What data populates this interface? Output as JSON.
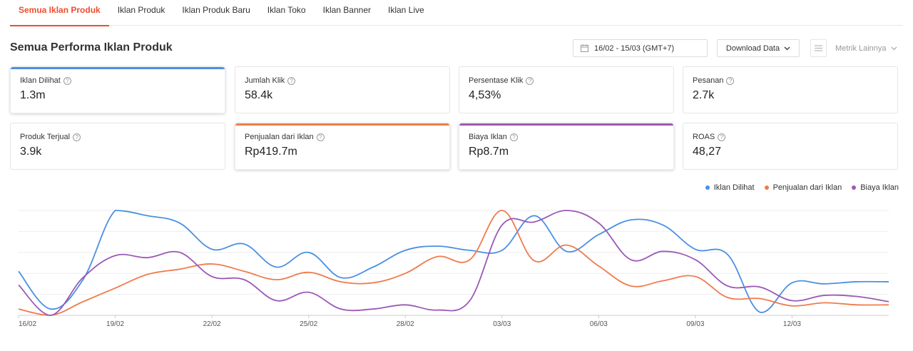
{
  "tabs": [
    {
      "label": "Semua Iklan Produk",
      "active": true
    },
    {
      "label": "Iklan Produk",
      "active": false
    },
    {
      "label": "Iklan Produk Baru",
      "active": false
    },
    {
      "label": "Iklan Toko",
      "active": false
    },
    {
      "label": "Iklan Banner",
      "active": false
    },
    {
      "label": "Iklan Live",
      "active": false
    }
  ],
  "header": {
    "title": "Semua Performa Iklan Produk",
    "date_range": "16/02 - 15/03 (GMT+7)",
    "download_label": "Download Data",
    "metrik_label": "Metrik Lainnya"
  },
  "metrics": [
    {
      "label": "Iklan Dilihat",
      "value": "1.3m"
    },
    {
      "label": "Jumlah Klik",
      "value": "58.4k"
    },
    {
      "label": "Persentase Klik",
      "value": "4,53%"
    },
    {
      "label": "Pesanan",
      "value": "2.7k"
    },
    {
      "label": "Produk Terjual",
      "value": "3.9k"
    },
    {
      "label": "Penjualan dari Iklan",
      "value": "Rp419.7m"
    },
    {
      "label": "Biaya Iklan",
      "value": "Rp8.7m"
    },
    {
      "label": "ROAS",
      "value": "48,27"
    }
  ],
  "colors": {
    "accent": "#ee4d2d",
    "blue": "#4a90e2",
    "orange": "#f07b4b",
    "purple": "#9b59b6"
  },
  "chart_data": {
    "type": "line",
    "x": [
      "16/02",
      "17/02",
      "18/02",
      "19/02",
      "20/02",
      "21/02",
      "22/02",
      "23/02",
      "24/02",
      "25/02",
      "26/02",
      "27/02",
      "28/02",
      "01/03",
      "02/03",
      "03/03",
      "04/03",
      "05/03",
      "06/03",
      "07/03",
      "08/03",
      "09/03",
      "10/03",
      "11/03",
      "12/03",
      "13/03",
      "14/03",
      "15/03"
    ],
    "tick_labels": [
      "16/02",
      "19/02",
      "22/02",
      "25/02",
      "28/02",
      "03/03",
      "06/03",
      "09/03",
      "12/03"
    ],
    "series": [
      {
        "name": "Iklan Dilihat",
        "color": "#4a90e2",
        "values": [
          42,
          6,
          34,
          100,
          95,
          88,
          63,
          68,
          46,
          60,
          36,
          46,
          62,
          66,
          62,
          62,
          95,
          61,
          77,
          91,
          86,
          63,
          58,
          3,
          31,
          30,
          32,
          32
        ]
      },
      {
        "name": "Penjualan dari Iklan",
        "color": "#f07b4b",
        "values": [
          6,
          0,
          13,
          26,
          39,
          44,
          49,
          42,
          34,
          41,
          32,
          31,
          40,
          56,
          53,
          100,
          52,
          67,
          47,
          28,
          33,
          37,
          17,
          16,
          9,
          12,
          10,
          10
        ]
      },
      {
        "name": "Biaya Iklan",
        "color": "#9b59b6",
        "values": [
          29,
          0,
          36,
          57,
          55,
          60,
          37,
          34,
          14,
          22,
          6,
          6,
          10,
          5,
          14,
          86,
          89,
          100,
          88,
          53,
          61,
          53,
          28,
          27,
          14,
          19,
          18,
          13
        ]
      }
    ],
    "legend_position": "top-right",
    "grid": true
  }
}
